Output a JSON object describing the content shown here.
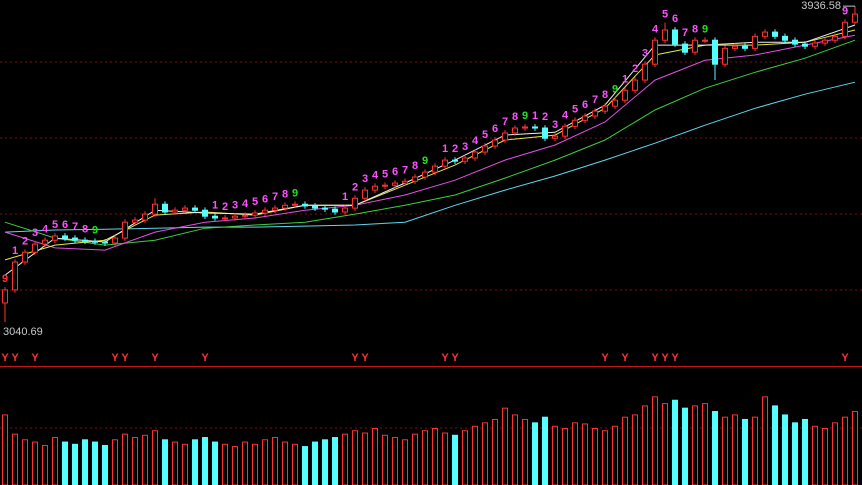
{
  "chart_data": [
    {
      "type": "candlestick",
      "ylim": [
        2990,
        3954
      ],
      "up_color": "#ff3232",
      "down_color": "#54ffff",
      "annotation_color": "#c8c8c8",
      "open": [
        3095,
        3132,
        3211,
        3239,
        3262,
        3273,
        3285,
        3279,
        3273,
        3270,
        3268,
        3265,
        3279,
        3324,
        3330,
        3347,
        3375,
        3353,
        3358,
        3364,
        3358,
        3341,
        3336,
        3336,
        3341,
        3344,
        3350,
        3358,
        3364,
        3372,
        3375,
        3370,
        3364,
        3361,
        3353,
        3364,
        3392,
        3415,
        3426,
        3429,
        3435,
        3440,
        3452,
        3466,
        3483,
        3500,
        3497,
        3506,
        3523,
        3540,
        3557,
        3577,
        3591,
        3594,
        3591,
        3562,
        3568,
        3596,
        3613,
        3625,
        3639,
        3653,
        3670,
        3698,
        3727,
        3772,
        3840,
        3869,
        3829,
        3806,
        3840,
        3840,
        3772,
        3817,
        3823,
        3817,
        3851,
        3863,
        3851,
        3840,
        3829,
        3823,
        3832,
        3840,
        3851,
        3891
      ],
      "high": [
        3140,
        3219,
        3247,
        3270,
        3281,
        3293,
        3293,
        3287,
        3281,
        3278,
        3276,
        3287,
        3332,
        3338,
        3355,
        3392,
        3383,
        3366,
        3372,
        3372,
        3366,
        3349,
        3344,
        3349,
        3352,
        3358,
        3366,
        3372,
        3380,
        3383,
        3383,
        3378,
        3372,
        3369,
        3372,
        3400,
        3423,
        3434,
        3437,
        3443,
        3448,
        3460,
        3474,
        3491,
        3508,
        3508,
        3514,
        3531,
        3548,
        3565,
        3585,
        3599,
        3602,
        3602,
        3599,
        3576,
        3604,
        3621,
        3633,
        3647,
        3661,
        3678,
        3706,
        3735,
        3780,
        3848,
        3890,
        3877,
        3837,
        3848,
        3848,
        3848,
        3825,
        3831,
        3831,
        3859,
        3871,
        3871,
        3859,
        3848,
        3837,
        3840,
        3848,
        3859,
        3899,
        3936.58
      ],
      "low": [
        3040.69,
        3124,
        3203,
        3231,
        3254,
        3265,
        3271,
        3265,
        3262,
        3260,
        3257,
        3257,
        3271,
        3316,
        3322,
        3339,
        3345,
        3345,
        3350,
        3350,
        3333,
        3328,
        3328,
        3328,
        3333,
        3336,
        3342,
        3350,
        3356,
        3364,
        3362,
        3356,
        3353,
        3345,
        3345,
        3356,
        3384,
        3407,
        3418,
        3421,
        3427,
        3432,
        3444,
        3458,
        3475,
        3489,
        3489,
        3498,
        3515,
        3532,
        3549,
        3569,
        3583,
        3583,
        3554,
        3554,
        3560,
        3588,
        3605,
        3617,
        3631,
        3645,
        3662,
        3690,
        3719,
        3764,
        3832,
        3821,
        3798,
        3798,
        3832,
        3727,
        3764,
        3809,
        3809,
        3809,
        3843,
        3843,
        3832,
        3821,
        3815,
        3815,
        3824,
        3832,
        3843,
        3885
      ],
      "close": [
        3132,
        3211,
        3239,
        3262,
        3273,
        3285,
        3279,
        3273,
        3270,
        3268,
        3265,
        3279,
        3324,
        3330,
        3347,
        3375,
        3353,
        3358,
        3364,
        3358,
        3341,
        3336,
        3336,
        3341,
        3344,
        3350,
        3358,
        3364,
        3372,
        3375,
        3370,
        3364,
        3361,
        3353,
        3364,
        3392,
        3415,
        3426,
        3429,
        3435,
        3440,
        3452,
        3466,
        3483,
        3500,
        3497,
        3506,
        3523,
        3540,
        3557,
        3577,
        3591,
        3594,
        3591,
        3562,
        3568,
        3596,
        3613,
        3625,
        3639,
        3653,
        3670,
        3698,
        3727,
        3772,
        3840,
        3869,
        3829,
        3806,
        3840,
        3840,
        3772,
        3817,
        3823,
        3817,
        3851,
        3863,
        3851,
        3840,
        3829,
        3823,
        3832,
        3840,
        3851,
        3891,
        3914
      ],
      "ma_x": [
        0,
        5,
        10,
        15,
        20,
        25,
        30,
        35,
        40,
        45,
        50,
        55,
        60,
        65,
        70,
        75,
        80,
        85
      ],
      "lines": [
        {
          "color": "#5fd7f0",
          "values": [
            3296,
            3302,
            3304,
            3307,
            3310,
            3310,
            3313,
            3316,
            3324,
            3372,
            3415,
            3455,
            3500,
            3548,
            3599,
            3647,
            3687,
            3721
          ]
        },
        {
          "color": "#3ccf3c",
          "values": [
            3324,
            3279,
            3259,
            3273,
            3307,
            3316,
            3324,
            3347,
            3372,
            3401,
            3449,
            3500,
            3557,
            3642,
            3704,
            3749,
            3789,
            3840
          ]
        },
        {
          "color": "#e050e0",
          "values": [
            3296,
            3251,
            3245,
            3296,
            3324,
            3336,
            3358,
            3372,
            3401,
            3443,
            3500,
            3543,
            3608,
            3727,
            3783,
            3798,
            3826,
            3854
          ]
        },
        {
          "color": "#e8e840",
          "values": [
            3217,
            3259,
            3273,
            3344,
            3353,
            3344,
            3372,
            3372,
            3429,
            3486,
            3557,
            3571,
            3647,
            3798,
            3826,
            3826,
            3834,
            3869
          ]
        },
        {
          "color": "#f0f0f0",
          "values": [
            3174,
            3279,
            3268,
            3358,
            3350,
            3347,
            3372,
            3372,
            3435,
            3500,
            3571,
            3579,
            3656,
            3826,
            3826,
            3834,
            3834,
            3883
          ]
        }
      ],
      "counts": [
        {
          "index": 0,
          "text": "9",
          "color": "#ff3232"
        },
        {
          "index": 1,
          "text": "1",
          "color": "#ff50ff"
        },
        {
          "index": 2,
          "text": "2",
          "color": "#ff50ff"
        },
        {
          "index": 3,
          "text": "3",
          "color": "#ff50ff"
        },
        {
          "index": 4,
          "text": "4",
          "color": "#ff50ff"
        },
        {
          "index": 5,
          "text": "5",
          "color": "#ff50ff"
        },
        {
          "index": 6,
          "text": "6",
          "color": "#ff50ff"
        },
        {
          "index": 7,
          "text": "7",
          "color": "#ff50ff"
        },
        {
          "index": 8,
          "text": "8",
          "color": "#ff50ff"
        },
        {
          "index": 9,
          "text": "9",
          "color": "#22e022"
        },
        {
          "index": 21,
          "text": "1",
          "color": "#ff50ff"
        },
        {
          "index": 22,
          "text": "2",
          "color": "#ff50ff"
        },
        {
          "index": 23,
          "text": "3",
          "color": "#ff50ff"
        },
        {
          "index": 24,
          "text": "4",
          "color": "#ff50ff"
        },
        {
          "index": 25,
          "text": "5",
          "color": "#ff50ff"
        },
        {
          "index": 26,
          "text": "6",
          "color": "#ff50ff"
        },
        {
          "index": 27,
          "text": "7",
          "color": "#ff50ff"
        },
        {
          "index": 28,
          "text": "8",
          "color": "#ff50ff"
        },
        {
          "index": 29,
          "text": "9",
          "color": "#22e022"
        },
        {
          "index": 34,
          "text": "1",
          "color": "#ff50ff"
        },
        {
          "index": 35,
          "text": "2",
          "color": "#ff50ff"
        },
        {
          "index": 36,
          "text": "3",
          "color": "#ff50ff"
        },
        {
          "index": 37,
          "text": "4",
          "color": "#ff50ff"
        },
        {
          "index": 38,
          "text": "5",
          "color": "#ff50ff"
        },
        {
          "index": 39,
          "text": "6",
          "color": "#ff50ff"
        },
        {
          "index": 40,
          "text": "7",
          "color": "#ff50ff"
        },
        {
          "index": 41,
          "text": "8",
          "color": "#ff50ff"
        },
        {
          "index": 42,
          "text": "9",
          "color": "#22e022"
        },
        {
          "index": 44,
          "text": "1",
          "color": "#ff50ff"
        },
        {
          "index": 45,
          "text": "2",
          "color": "#ff50ff"
        },
        {
          "index": 46,
          "text": "3",
          "color": "#ff50ff"
        },
        {
          "index": 47,
          "text": "4",
          "color": "#ff50ff"
        },
        {
          "index": 48,
          "text": "5",
          "color": "#ff50ff"
        },
        {
          "index": 49,
          "text": "6",
          "color": "#ff50ff"
        },
        {
          "index": 50,
          "text": "7",
          "color": "#ff50ff"
        },
        {
          "index": 51,
          "text": "8",
          "color": "#ff50ff"
        },
        {
          "index": 52,
          "text": "9",
          "color": "#22e022"
        },
        {
          "index": 53,
          "text": "1",
          "color": "#ff50ff"
        },
        {
          "index": 54,
          "text": "2",
          "color": "#ff50ff"
        },
        {
          "index": 55,
          "text": "3",
          "color": "#ff50ff"
        },
        {
          "index": 56,
          "text": "4",
          "color": "#ff50ff"
        },
        {
          "index": 57,
          "text": "5",
          "color": "#ff50ff"
        },
        {
          "index": 58,
          "text": "6",
          "color": "#ff50ff"
        },
        {
          "index": 59,
          "text": "7",
          "color": "#ff50ff"
        },
        {
          "index": 60,
          "text": "8",
          "color": "#ff50ff"
        },
        {
          "index": 61,
          "text": "9",
          "color": "#22e022"
        },
        {
          "index": 62,
          "text": "1",
          "color": "#ff50ff"
        },
        {
          "index": 63,
          "text": "2",
          "color": "#ff50ff"
        },
        {
          "index": 64,
          "text": "3",
          "color": "#ff50ff"
        },
        {
          "index": 65,
          "text": "4",
          "color": "#ff50ff"
        },
        {
          "index": 66,
          "text": "5",
          "color": "#ff50ff"
        },
        {
          "index": 67,
          "text": "6",
          "color": "#ff50ff"
        },
        {
          "index": 68,
          "text": "7",
          "color": "#ff50ff"
        },
        {
          "index": 69,
          "text": "8",
          "color": "#ff50ff"
        },
        {
          "index": 70,
          "text": "9",
          "color": "#22e022"
        },
        {
          "index": 84,
          "text": "9",
          "color": "#ff50ff"
        }
      ],
      "signals": {
        "text": "Y",
        "color": "#ff3030",
        "indices": [
          0,
          1,
          3,
          11,
          12,
          15,
          20,
          35,
          36,
          44,
          45,
          60,
          62,
          65,
          66,
          67,
          84
        ]
      }
    },
    {
      "type": "bar",
      "ylim": [
        0,
        100
      ],
      "up_color": "#ff3232",
      "down_color": "#54ffff",
      "values": [
        62,
        45,
        40,
        38,
        35,
        42,
        38,
        36,
        40,
        38,
        35,
        40,
        45,
        42,
        44,
        48,
        40,
        38,
        36,
        40,
        42,
        38,
        36,
        34,
        38,
        36,
        40,
        42,
        38,
        36,
        34,
        38,
        40,
        42,
        45,
        48,
        46,
        50,
        44,
        42,
        40,
        45,
        48,
        50,
        46,
        44,
        48,
        52,
        55,
        58,
        68,
        62,
        58,
        55,
        60,
        52,
        50,
        55,
        54,
        50,
        48,
        52,
        60,
        62,
        70,
        78,
        72,
        75,
        68,
        70,
        72,
        65,
        60,
        62,
        58,
        60,
        78,
        70,
        62,
        55,
        58,
        52,
        50,
        55,
        60,
        65
      ]
    }
  ]
}
